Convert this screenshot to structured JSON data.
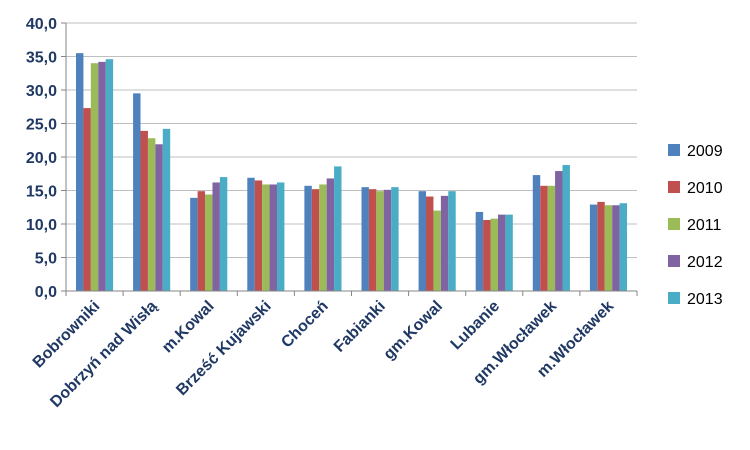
{
  "chart_data": {
    "type": "bar",
    "categories": [
      "Bobrowniki",
      "Dobrzyń nad Wisłą",
      "m.Kowal",
      "Brześć Kujawski",
      "Choceń",
      "Fabianki",
      "gm.Kowal",
      "Lubanie",
      "gm.Włocławek",
      "m.Włocławek"
    ],
    "series": [
      {
        "name": "2009",
        "color": "#4F81BD",
        "values": [
          35.5,
          29.5,
          13.9,
          16.9,
          15.7,
          15.5,
          14.9,
          11.8,
          17.3,
          12.9
        ]
      },
      {
        "name": "2010",
        "color": "#C0504D",
        "values": [
          27.3,
          23.9,
          14.9,
          16.5,
          15.2,
          15.2,
          14.1,
          10.6,
          15.7,
          13.3
        ]
      },
      {
        "name": "2011",
        "color": "#9BBB59",
        "values": [
          34.0,
          22.8,
          14.4,
          15.9,
          15.9,
          14.9,
          12.0,
          10.8,
          15.7,
          12.8
        ]
      },
      {
        "name": "2012",
        "color": "#8064A2",
        "values": [
          34.2,
          21.9,
          16.2,
          15.9,
          16.8,
          15.1,
          14.2,
          11.4,
          17.9,
          12.8
        ]
      },
      {
        "name": "2013",
        "color": "#4BACC6",
        "values": [
          34.6,
          24.2,
          17.0,
          16.2,
          18.6,
          15.5,
          14.9,
          11.4,
          18.8,
          13.1
        ]
      }
    ],
    "title": "",
    "xlabel": "",
    "ylabel": "",
    "ylim": [
      0,
      40
    ],
    "yticks": [
      "0,0",
      "5,0",
      "10,0",
      "15,0",
      "20,0",
      "25,0",
      "30,0",
      "35,0",
      "40,0"
    ],
    "grid": true,
    "legend_position": "right"
  }
}
